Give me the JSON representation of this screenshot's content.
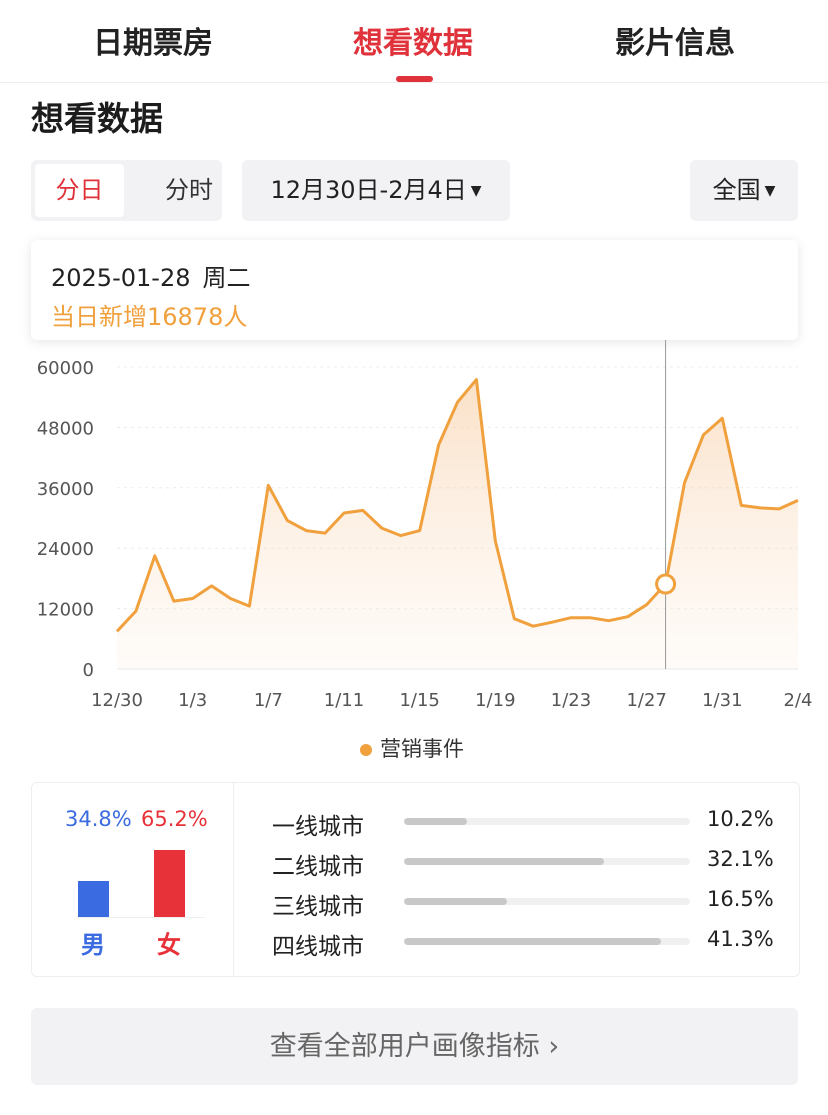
{
  "tabs": [
    {
      "label": "日期票房",
      "active": false
    },
    {
      "label": "想看数据",
      "active": true
    },
    {
      "label": "影片信息",
      "active": false
    }
  ],
  "section_title": "想看数据",
  "controls": {
    "granularity": [
      "分日",
      "分时"
    ],
    "date_range": "12月30日-2月4日",
    "region": "全国"
  },
  "tooltip": {
    "date": "2025-01-28",
    "weekday": "周二",
    "value_text": "当日新增16878人"
  },
  "colors": {
    "accent": "#e0323a",
    "line": "#f0a03c",
    "male": "#3b6be0",
    "female": "#e8323a"
  },
  "chart_data": {
    "type": "area",
    "x": [
      "12/30",
      "12/31",
      "1/1",
      "1/2",
      "1/3",
      "1/4",
      "1/5",
      "1/6",
      "1/7",
      "1/8",
      "1/9",
      "1/10",
      "1/11",
      "1/12",
      "1/13",
      "1/14",
      "1/15",
      "1/16",
      "1/17",
      "1/18",
      "1/19",
      "1/20",
      "1/21",
      "1/22",
      "1/23",
      "1/24",
      "1/25",
      "1/26",
      "1/27",
      "1/28",
      "1/29",
      "1/30",
      "1/31",
      "2/1",
      "2/2",
      "2/3",
      "2/4"
    ],
    "series": [
      {
        "name": "营销事件",
        "values": [
          7500,
          11500,
          22500,
          13500,
          14000,
          16500,
          14000,
          12500,
          36500,
          29500,
          27500,
          27000,
          31000,
          31500,
          28000,
          26500,
          27500,
          44500,
          53000,
          57500,
          25500,
          10000,
          8500,
          9300,
          10200,
          10200,
          9600,
          10400,
          12800,
          16878,
          37000,
          46500,
          49800,
          32500,
          32000,
          31800,
          33500
        ]
      }
    ],
    "x_tick_labels": [
      "12/30",
      "1/3",
      "1/7",
      "1/11",
      "1/15",
      "1/19",
      "1/23",
      "1/27",
      "1/31",
      "2/4"
    ],
    "y_tick_labels": [
      "60000",
      "48000",
      "36000",
      "24000",
      "12000",
      "0"
    ],
    "ylim": [
      0,
      60000
    ],
    "highlight_index": 29,
    "legend": "bottom-center",
    "grid": true
  },
  "gender": {
    "male": {
      "label": "男",
      "pct": "34.8%",
      "value": 34.8
    },
    "female": {
      "label": "女",
      "pct": "65.2%",
      "value": 65.2
    }
  },
  "cities": [
    {
      "name": "一线城市",
      "pct": "10.2%",
      "value": 10.2
    },
    {
      "name": "二线城市",
      "pct": "32.1%",
      "value": 32.1
    },
    {
      "name": "三线城市",
      "pct": "16.5%",
      "value": 16.5
    },
    {
      "name": "四线城市",
      "pct": "41.3%",
      "value": 41.3
    }
  ],
  "bottom_button": "查看全部用户画像指标 ›"
}
